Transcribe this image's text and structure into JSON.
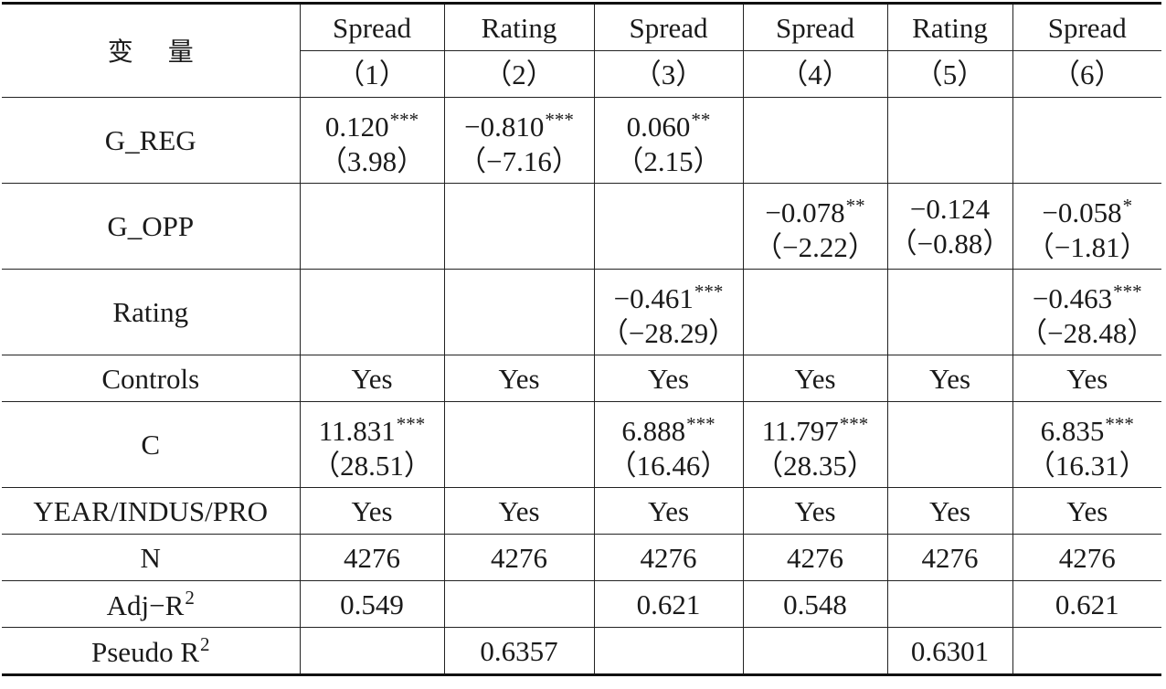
{
  "table": {
    "corner_label": "变量",
    "dep_vars": [
      "Spread",
      "Rating",
      "Spread",
      "Spread",
      "Rating",
      "Spread"
    ],
    "model_numbers": [
      "（1）",
      "（2）",
      "（3）",
      "（4）",
      "（5）",
      "（6）"
    ],
    "rows": [
      {
        "label": "G_REG",
        "cells": [
          {
            "coef": "0.120",
            "stars": "***",
            "t": "（3.98）"
          },
          {
            "coef": "−0.810",
            "stars": "***",
            "t": "（−7.16）"
          },
          {
            "coef": "0.060",
            "stars": "**",
            "t": "（2.15）"
          },
          {
            "coef": "",
            "stars": "",
            "t": ""
          },
          {
            "coef": "",
            "stars": "",
            "t": ""
          },
          {
            "coef": "",
            "stars": "",
            "t": ""
          }
        ]
      },
      {
        "label": "G_OPP",
        "cells": [
          {
            "coef": "",
            "stars": "",
            "t": ""
          },
          {
            "coef": "",
            "stars": "",
            "t": ""
          },
          {
            "coef": "",
            "stars": "",
            "t": ""
          },
          {
            "coef": "−0.078",
            "stars": "**",
            "t": "（−2.22）"
          },
          {
            "coef": "−0.124",
            "stars": "",
            "t": "（−0.88）"
          },
          {
            "coef": "−0.058",
            "stars": "*",
            "t": "（−1.81）"
          }
        ]
      },
      {
        "label": "Rating",
        "cells": [
          {
            "coef": "",
            "stars": "",
            "t": ""
          },
          {
            "coef": "",
            "stars": "",
            "t": ""
          },
          {
            "coef": "−0.461",
            "stars": "***",
            "t": "（−28.29）"
          },
          {
            "coef": "",
            "stars": "",
            "t": ""
          },
          {
            "coef": "",
            "stars": "",
            "t": ""
          },
          {
            "coef": "−0.463",
            "stars": "***",
            "t": "（−28.48）"
          }
        ]
      }
    ],
    "controls": {
      "label": "Controls",
      "values": [
        "Yes",
        "Yes",
        "Yes",
        "Yes",
        "Yes",
        "Yes"
      ]
    },
    "constant": {
      "label": "C",
      "cells": [
        {
          "coef": "11.831",
          "stars": "***",
          "t": "（28.51）"
        },
        {
          "coef": "",
          "stars": "",
          "t": ""
        },
        {
          "coef": "6.888",
          "stars": "***",
          "t": "（16.46）"
        },
        {
          "coef": "11.797",
          "stars": "***",
          "t": "（28.35）"
        },
        {
          "coef": "",
          "stars": "",
          "t": ""
        },
        {
          "coef": "6.835",
          "stars": "***",
          "t": "（16.31）"
        }
      ]
    },
    "fixed_effects": {
      "label": "YEAR/INDUS/PRO",
      "values": [
        "Yes",
        "Yes",
        "Yes",
        "Yes",
        "Yes",
        "Yes"
      ]
    },
    "n": {
      "label": "N",
      "values": [
        "4276",
        "4276",
        "4276",
        "4276",
        "4276",
        "4276"
      ]
    },
    "adj_r2": {
      "label": "Adj−R",
      "label_sup": "2",
      "values": [
        "0.549",
        "",
        "0.621",
        "0.548",
        "",
        "0.621"
      ]
    },
    "pseudo_r2": {
      "label": "Pseudo R",
      "label_sup": "2",
      "values": [
        "",
        "0.6357",
        "",
        "",
        "0.6301",
        ""
      ]
    }
  }
}
